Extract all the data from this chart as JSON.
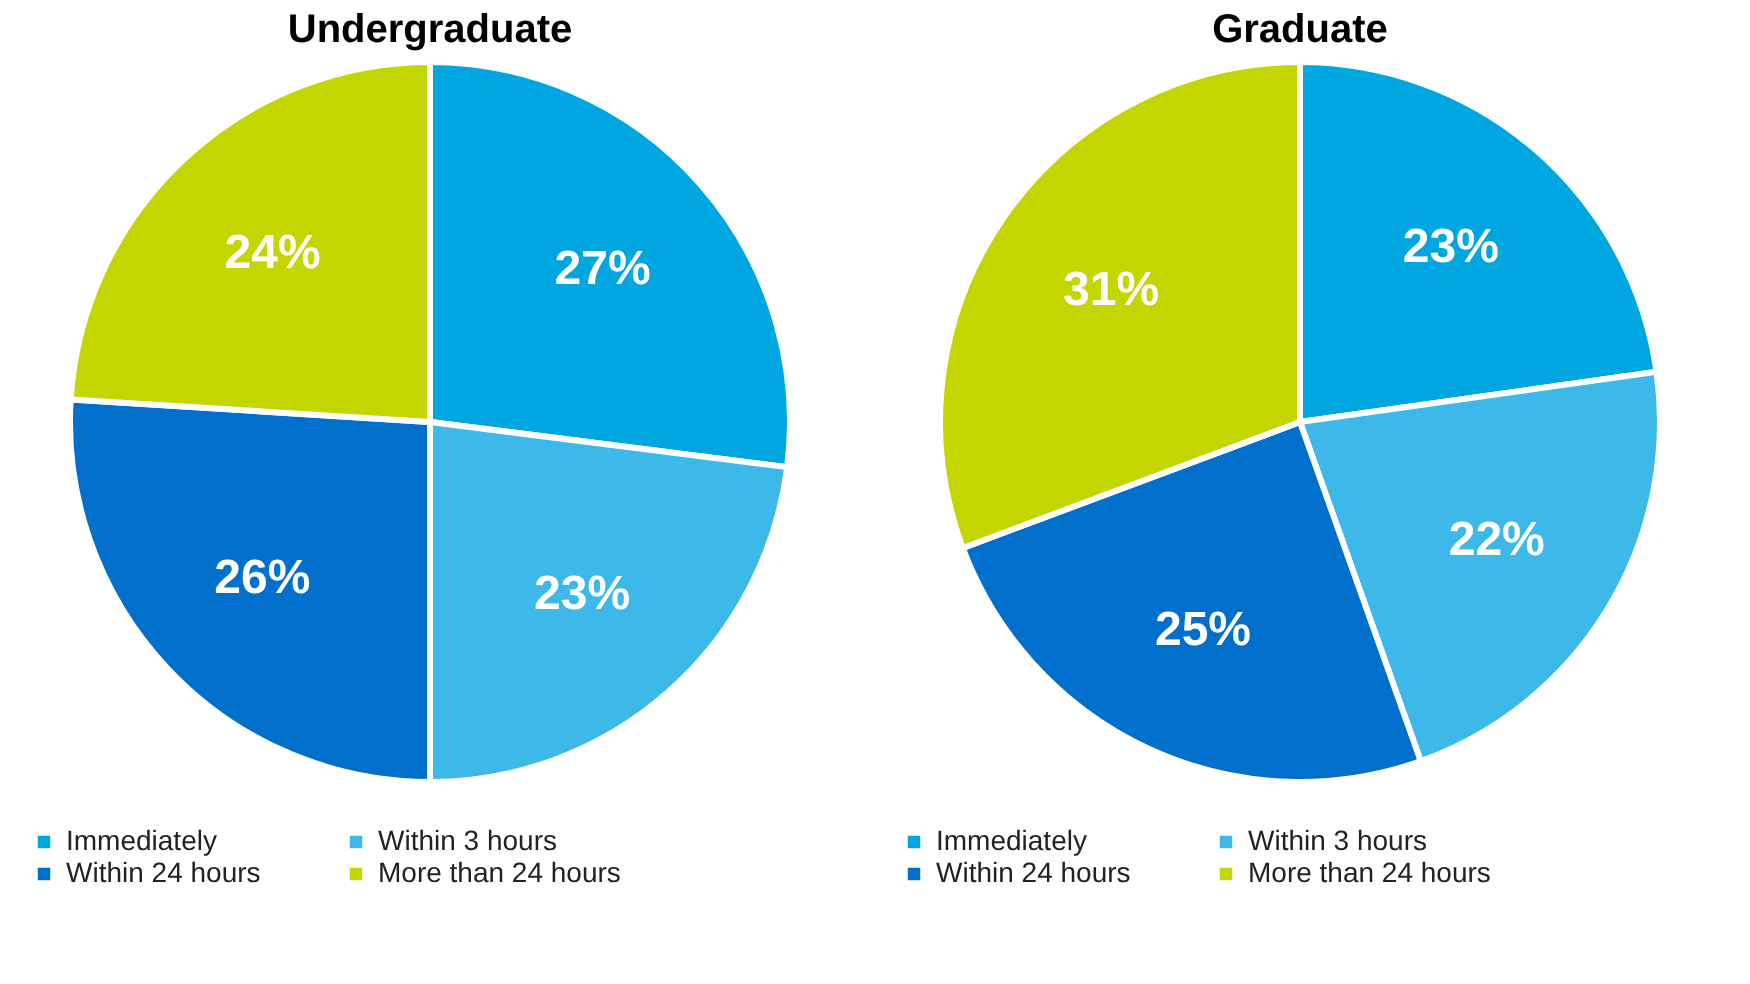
{
  "chart_data": [
    {
      "type": "pie",
      "title": "Undergraduate",
      "categories": [
        "Immediately",
        "Within 3 hours",
        "Within 24 hours",
        "More than 24 hours"
      ],
      "values": [
        27,
        23,
        26,
        24
      ],
      "colors": [
        "#00a6e0",
        "#3cb9e8",
        "#0070cc",
        "#c4d600"
      ],
      "value_labels": [
        "27%",
        "23%",
        "26%",
        "24%"
      ],
      "legend": "bottom"
    },
    {
      "type": "pie",
      "title": "Graduate",
      "categories": [
        "Immediately",
        "Within 3 hours",
        "Within 24 hours",
        "More than 24 hours"
      ],
      "values": [
        23,
        22,
        25,
        31
      ],
      "colors": [
        "#00a6e0",
        "#3cb9e8",
        "#0070cc",
        "#c4d600"
      ],
      "value_labels": [
        "23%",
        "22%",
        "25%",
        "31%"
      ],
      "legend": "bottom"
    }
  ]
}
